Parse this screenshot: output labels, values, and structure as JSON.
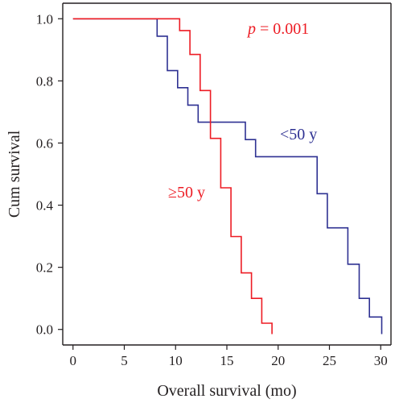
{
  "chart_data": {
    "type": "line",
    "step": true,
    "xlabel": "Overall survival (mo)",
    "ylabel": "Cum survival",
    "xlim": [
      -1,
      31
    ],
    "ylim": [
      -0.05,
      1.05
    ],
    "x_ticks": [
      0,
      5,
      10,
      15,
      20,
      25,
      30
    ],
    "y_ticks": [
      0.0,
      0.2,
      0.4,
      0.6,
      0.8,
      1.0
    ],
    "grid": false,
    "series": [
      {
        "name": "<50 y",
        "color": "#2e3192",
        "points": [
          [
            0,
            1.0
          ],
          [
            8.2,
            1.0
          ],
          [
            8.2,
            0.944
          ],
          [
            9.2,
            0.944
          ],
          [
            9.2,
            0.833
          ],
          [
            10.2,
            0.833
          ],
          [
            10.2,
            0.778
          ],
          [
            11.2,
            0.778
          ],
          [
            11.2,
            0.722
          ],
          [
            12.2,
            0.722
          ],
          [
            12.2,
            0.667
          ],
          [
            16.8,
            0.667
          ],
          [
            16.8,
            0.611
          ],
          [
            17.8,
            0.611
          ],
          [
            17.8,
            0.556
          ],
          [
            23.8,
            0.556
          ],
          [
            23.8,
            0.437
          ],
          [
            24.8,
            0.437
          ],
          [
            24.8,
            0.327
          ],
          [
            26.8,
            0.327
          ],
          [
            26.8,
            0.21
          ],
          [
            27.9,
            0.21
          ],
          [
            27.9,
            0.1
          ],
          [
            28.9,
            0.1
          ],
          [
            28.9,
            0.04
          ],
          [
            30.1,
            0.04
          ],
          [
            30.1,
            -0.015
          ]
        ]
      },
      {
        "name": "≥50 y",
        "color": "#ed1c24",
        "points": [
          [
            0,
            1.0
          ],
          [
            10.4,
            1.0
          ],
          [
            10.4,
            0.962
          ],
          [
            11.4,
            0.962
          ],
          [
            11.4,
            0.885
          ],
          [
            12.4,
            0.885
          ],
          [
            12.4,
            0.769
          ],
          [
            13.4,
            0.769
          ],
          [
            13.4,
            0.615
          ],
          [
            14.4,
            0.615
          ],
          [
            14.4,
            0.456
          ],
          [
            15.4,
            0.456
          ],
          [
            15.4,
            0.299
          ],
          [
            16.4,
            0.299
          ],
          [
            16.4,
            0.182
          ],
          [
            17.4,
            0.182
          ],
          [
            17.4,
            0.1
          ],
          [
            18.4,
            0.1
          ],
          [
            18.4,
            0.02
          ],
          [
            19.4,
            0.02
          ],
          [
            19.4,
            -0.015
          ]
        ]
      }
    ],
    "annotations": [
      {
        "id": "p-value",
        "prefix": "p",
        "text": " = 0.001",
        "color": "#ed1c24"
      },
      {
        "id": "label-under-50",
        "text": "<50 y",
        "color": "#2e3192"
      },
      {
        "id": "label-over-50",
        "text": "≥50 y",
        "color": "#ed1c24"
      }
    ]
  }
}
